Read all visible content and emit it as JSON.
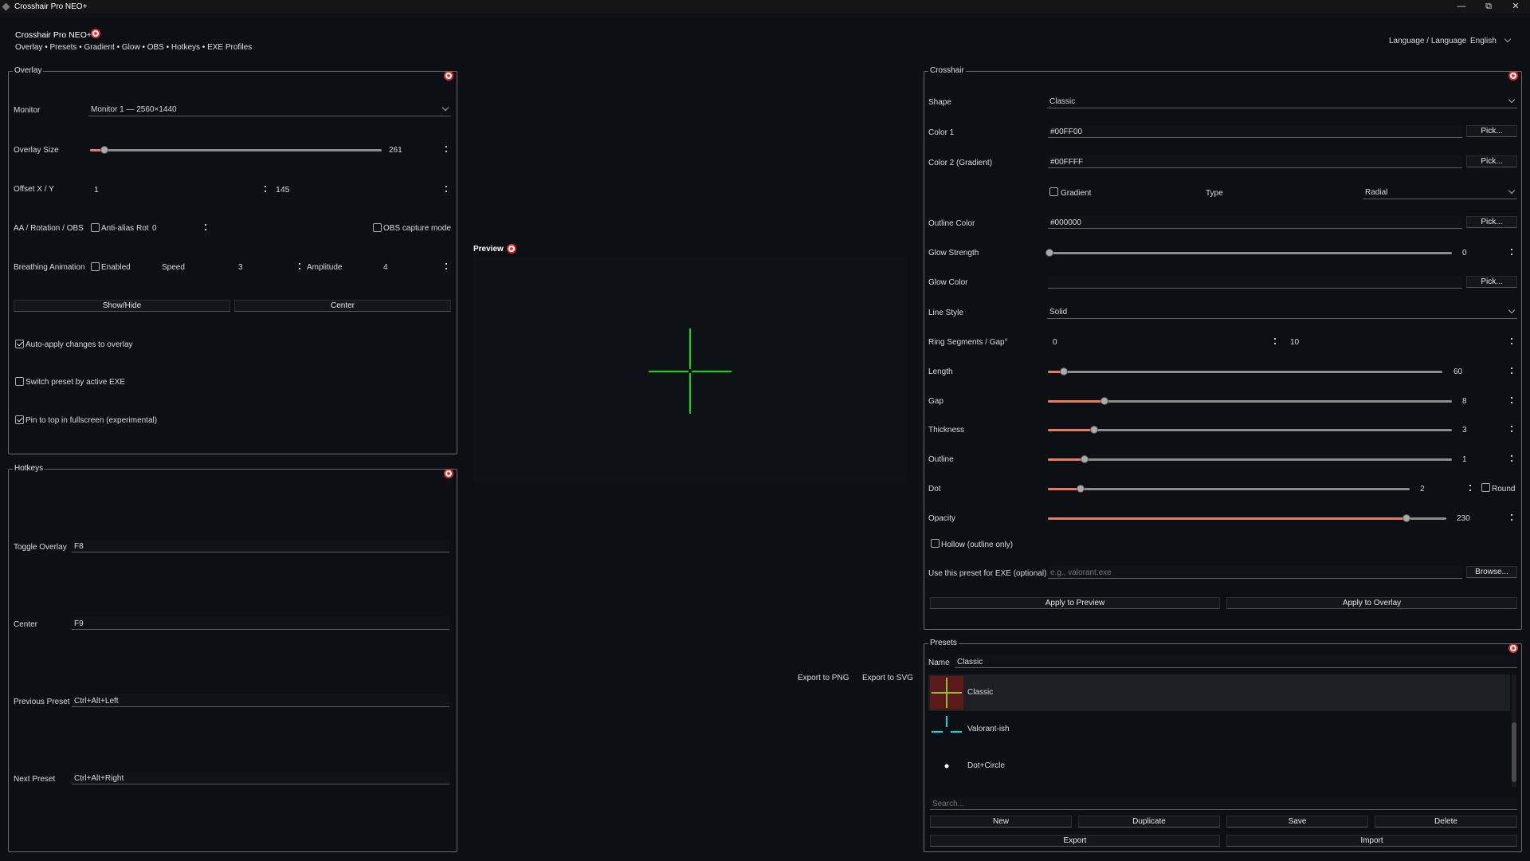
{
  "window": {
    "title": "Crosshair Pro NEO+",
    "min": "—",
    "max": "⧉",
    "close": "✕"
  },
  "header": {
    "app_title": "Crosshair Pro NEO+",
    "subtitle": "Overlay • Presets • Gradient • Glow • OBS • Hotkeys • EXE Profiles",
    "language_label": "Language / Language",
    "language_value": "English"
  },
  "overlay": {
    "title": "Overlay",
    "monitor_label": "Monitor",
    "monitor_value": "Monitor 1 — 2560×1440",
    "size_label": "Overlay Size",
    "size_value": "261",
    "size_fraction": 0.05,
    "offset_label": "Offset X / Y",
    "offset_x": "1",
    "offset_y": "145",
    "aa_label": "AA / Rotation / OBS",
    "antialias_label": "Anti-alias",
    "rot_label": "Rot",
    "rot_value": "0",
    "obs_label": "OBS capture mode",
    "breathing_label": "Breathing Animation",
    "enabled_label": "Enabled",
    "speed_label": "Speed",
    "speed_value": "3",
    "amplitude_label": "Amplitude",
    "amplitude_value": "4",
    "showhide_btn": "Show/Hide",
    "center_btn": "Center",
    "autoapply_label": "Auto-apply changes to overlay",
    "switchpreset_label": "Switch preset by active EXE",
    "pintop_label": "Pin to top in fullscreen (experimental)"
  },
  "hotkeys": {
    "title": "Hotkeys",
    "toggle_label": "Toggle Overlay",
    "toggle_value": "F8",
    "center_label": "Center",
    "center_value": "F9",
    "prev_label": "Previous Preset",
    "prev_value": "Ctrl+Alt+Left",
    "next_label": "Next Preset",
    "next_value": "Ctrl+Alt+Right"
  },
  "preview": {
    "title": "Preview",
    "export_png": "Export to PNG",
    "export_svg": "Export to SVG",
    "crosshair_color": "#00e000"
  },
  "crosshair": {
    "title": "Crosshair",
    "shape_label": "Shape",
    "shape_value": "Classic",
    "color1_label": "Color 1",
    "color1_value": "#00FF00",
    "color2_label": "Color 2 (Gradient)",
    "color2_value": "#00FFFF",
    "pick_label": "Pick...",
    "gradient_label": "Gradient",
    "type_label": "Type",
    "type_value": "Radial",
    "outline_color_label": "Outline Color",
    "outline_color_value": "#000000",
    "glow_strength_label": "Glow Strength",
    "glow_strength_value": "0",
    "glow_strength_fraction": 0.0,
    "glow_color_label": "Glow Color",
    "glow_color_value": "",
    "line_style_label": "Line Style",
    "line_style_value": "Solid",
    "ring_label": "Ring Segments / Gap°",
    "ring_segments": "0",
    "ring_gap": "10",
    "length_label": "Length",
    "length_value": "60",
    "length_fraction": 0.04,
    "gap_label": "Gap",
    "gap_value": "8",
    "gap_fraction": 0.14,
    "thickness_label": "Thickness",
    "thickness_value": "3",
    "thickness_fraction": 0.115,
    "outline_label": "Outline",
    "outline_value": "1",
    "outline_fraction": 0.09,
    "dot_label": "Dot",
    "dot_value": "2",
    "dot_fraction": 0.09,
    "round_label": "Round",
    "opacity_label": "Opacity",
    "opacity_value": "230",
    "opacity_fraction": 0.9,
    "hollow_label": "Hollow (outline only)",
    "exe_label": "Use this preset for EXE (optional)",
    "exe_placeholder": "e.g., valorant.exe",
    "browse_btn": "Browse...",
    "apply_preview_btn": "Apply to Preview",
    "apply_overlay_btn": "Apply to Overlay"
  },
  "presets": {
    "title": "Presets",
    "name_label": "Name",
    "name_value": "Classic",
    "items": [
      {
        "label": "Classic"
      },
      {
        "label": "Valorant-ish"
      },
      {
        "label": "Dot+Circle"
      }
    ],
    "search_placeholder": "Search...",
    "new_btn": "New",
    "duplicate_btn": "Duplicate",
    "save_btn": "Save",
    "delete_btn": "Delete",
    "export_btn": "Export",
    "import_btn": "Import"
  }
}
